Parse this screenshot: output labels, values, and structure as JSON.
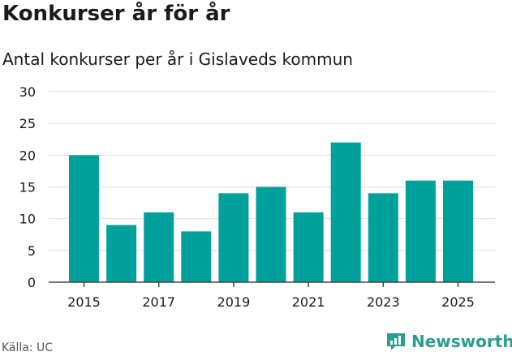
{
  "title": "Konkurser år för år",
  "subtitle": "Antal konkurser per år i Gislaveds kommun",
  "source": "Källa: UC",
  "brand": {
    "name": "Newsworthy",
    "icon": "newsworthy-logo-icon",
    "color": "#2a9d8f"
  },
  "colors": {
    "bar": "#00a19a",
    "grid": "#dddddd",
    "axis": "#444444"
  },
  "chart_data": {
    "type": "bar",
    "title": "Konkurser år för år",
    "subtitle": "Antal konkurser per år i Gislaveds kommun",
    "xlabel": "",
    "ylabel": "",
    "categories": [
      "2015",
      "2016",
      "2017",
      "2018",
      "2019",
      "2020",
      "2021",
      "2022",
      "2023",
      "2024",
      "2025"
    ],
    "values": [
      20,
      9,
      11,
      8,
      14,
      15,
      11,
      22,
      14,
      16,
      16
    ],
    "ylim": [
      0,
      30
    ],
    "yticks": [
      "0",
      "5",
      "10",
      "15",
      "20",
      "25",
      "30"
    ],
    "xtick_labels": [
      "2015",
      "2017",
      "2019",
      "2021",
      "2023",
      "2025"
    ],
    "grid": true
  }
}
